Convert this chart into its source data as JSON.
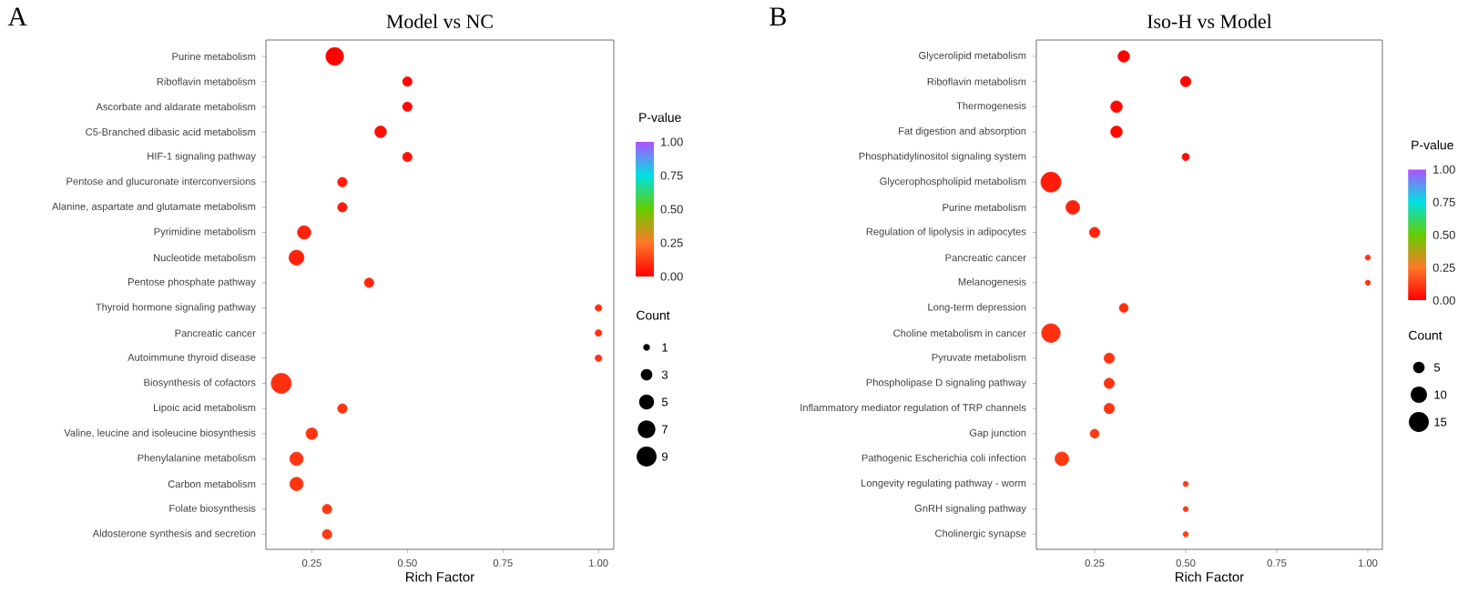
{
  "chart_data": [
    {
      "type": "bubble",
      "title": "Model vs NC",
      "xlabel": "Rich Factor",
      "orientation": "horizontal",
      "annotations": [
        "A"
      ],
      "categories": [
        "Purine metabolism",
        "Riboflavin metabolism",
        "Ascorbate and aldarate metabolism",
        "C5-Branched dibasic acid metabolism",
        "HIF-1 signaling pathway",
        "Pentose and glucuronate interconversions",
        "Alanine, aspartate and glutamate metabolism",
        "Pyrimidine metabolism",
        "Nucleotide metabolism",
        "Pentose phosphate pathway",
        "Thyroid hormone signaling pathway",
        "Pancreatic cancer",
        "Autoimmune thyroid disease",
        "Biosynthesis of cofactors",
        "Lipoic acid metabolism",
        "Valine, leucine and isoleucine biosynthesis",
        "Phenylalanine metabolism",
        "Carbon metabolism",
        "Folate biosynthesis",
        "Aldosterone synthesis and secretion"
      ],
      "values": [
        0.31,
        0.5,
        0.5,
        0.43,
        0.5,
        0.33,
        0.33,
        0.23,
        0.21,
        0.4,
        1.0,
        1.0,
        1.0,
        0.17,
        0.33,
        0.25,
        0.21,
        0.21,
        0.29,
        0.29
      ],
      "sizes": [
        7,
        2,
        2,
        3,
        2,
        2,
        2,
        4,
        5,
        2,
        1,
        1,
        1,
        9,
        2,
        3,
        4,
        4,
        2,
        2
      ],
      "cvalues": [
        0.0,
        0.02,
        0.02,
        0.03,
        0.04,
        0.06,
        0.06,
        0.07,
        0.07,
        0.08,
        0.1,
        0.1,
        0.1,
        0.1,
        0.11,
        0.11,
        0.11,
        0.11,
        0.12,
        0.12
      ],
      "xlim": [
        0.13,
        1.04
      ],
      "xticks": [
        {
          "value": 0.25,
          "label": "0.25"
        },
        {
          "value": 0.5,
          "label": "0.50"
        },
        {
          "value": 0.75,
          "label": "0.75"
        },
        {
          "value": 1.0,
          "label": "1.00"
        }
      ],
      "clabel": "P-value",
      "clim": [
        0,
        1
      ],
      "cticks": [
        {
          "value": 0,
          "label": "0.00"
        },
        {
          "value": 0.25,
          "label": "0.25"
        },
        {
          "value": 0.5,
          "label": "0.50"
        },
        {
          "value": 0.75,
          "label": "0.75"
        },
        {
          "value": 1,
          "label": "1.00"
        }
      ],
      "legend_title": "Count",
      "size_legend": [
        1,
        3,
        5,
        7,
        9
      ]
    },
    {
      "type": "bubble",
      "title": "Iso-H vs Model",
      "xlabel": "Rich Factor",
      "orientation": "horizontal",
      "annotations": [
        "B"
      ],
      "categories": [
        "Glycerolipid metabolism",
        "Riboflavin metabolism",
        "Thermogenesis",
        "Fat digestion and absorption",
        "Phosphatidylinositol signaling system",
        "Glycerophospholipid metabolism",
        "Purine metabolism",
        "Regulation of lipolysis in adipocytes",
        "Pancreatic cancer",
        "Melanogenesis",
        "Long-term depression",
        "Choline metabolism in cancer",
        "Pyruvate metabolism",
        "Phospholipase D signaling pathway",
        "Inflammatory mediator regulation of TRP channels",
        "Gap junction",
        "Pathogenic Escherichia coli infection",
        "Longevity regulating pathway - worm",
        "GnRH signaling pathway",
        "Cholinergic synapse"
      ],
      "values": [
        0.33,
        0.5,
        0.31,
        0.31,
        0.5,
        0.13,
        0.19,
        0.25,
        1.0,
        1.0,
        0.33,
        0.13,
        0.29,
        0.29,
        0.29,
        0.25,
        0.16,
        0.5,
        0.5,
        0.5
      ],
      "sizes": [
        5,
        4,
        5,
        5,
        2,
        15,
        7,
        4,
        1,
        1,
        3,
        13,
        4,
        4,
        4,
        3,
        7,
        1,
        1,
        1
      ],
      "cvalues": [
        0.0,
        0.01,
        0.02,
        0.02,
        0.03,
        0.06,
        0.07,
        0.08,
        0.1,
        0.1,
        0.1,
        0.1,
        0.11,
        0.11,
        0.11,
        0.12,
        0.12,
        0.12,
        0.12,
        0.12
      ],
      "xlim": [
        0.09,
        1.04
      ],
      "xticks": [
        {
          "value": 0.25,
          "label": "0.25"
        },
        {
          "value": 0.5,
          "label": "0.50"
        },
        {
          "value": 0.75,
          "label": "0.75"
        },
        {
          "value": 1.0,
          "label": "1.00"
        }
      ],
      "clabel": "P-value",
      "clim": [
        0,
        1
      ],
      "cticks": [
        {
          "value": 0,
          "label": "0.00"
        },
        {
          "value": 0.25,
          "label": "0.25"
        },
        {
          "value": 0.5,
          "label": "0.50"
        },
        {
          "value": 0.75,
          "label": "0.75"
        },
        {
          "value": 1,
          "label": "1.00"
        }
      ],
      "legend_title": "Count",
      "size_legend": [
        5,
        10,
        15
      ]
    }
  ]
}
